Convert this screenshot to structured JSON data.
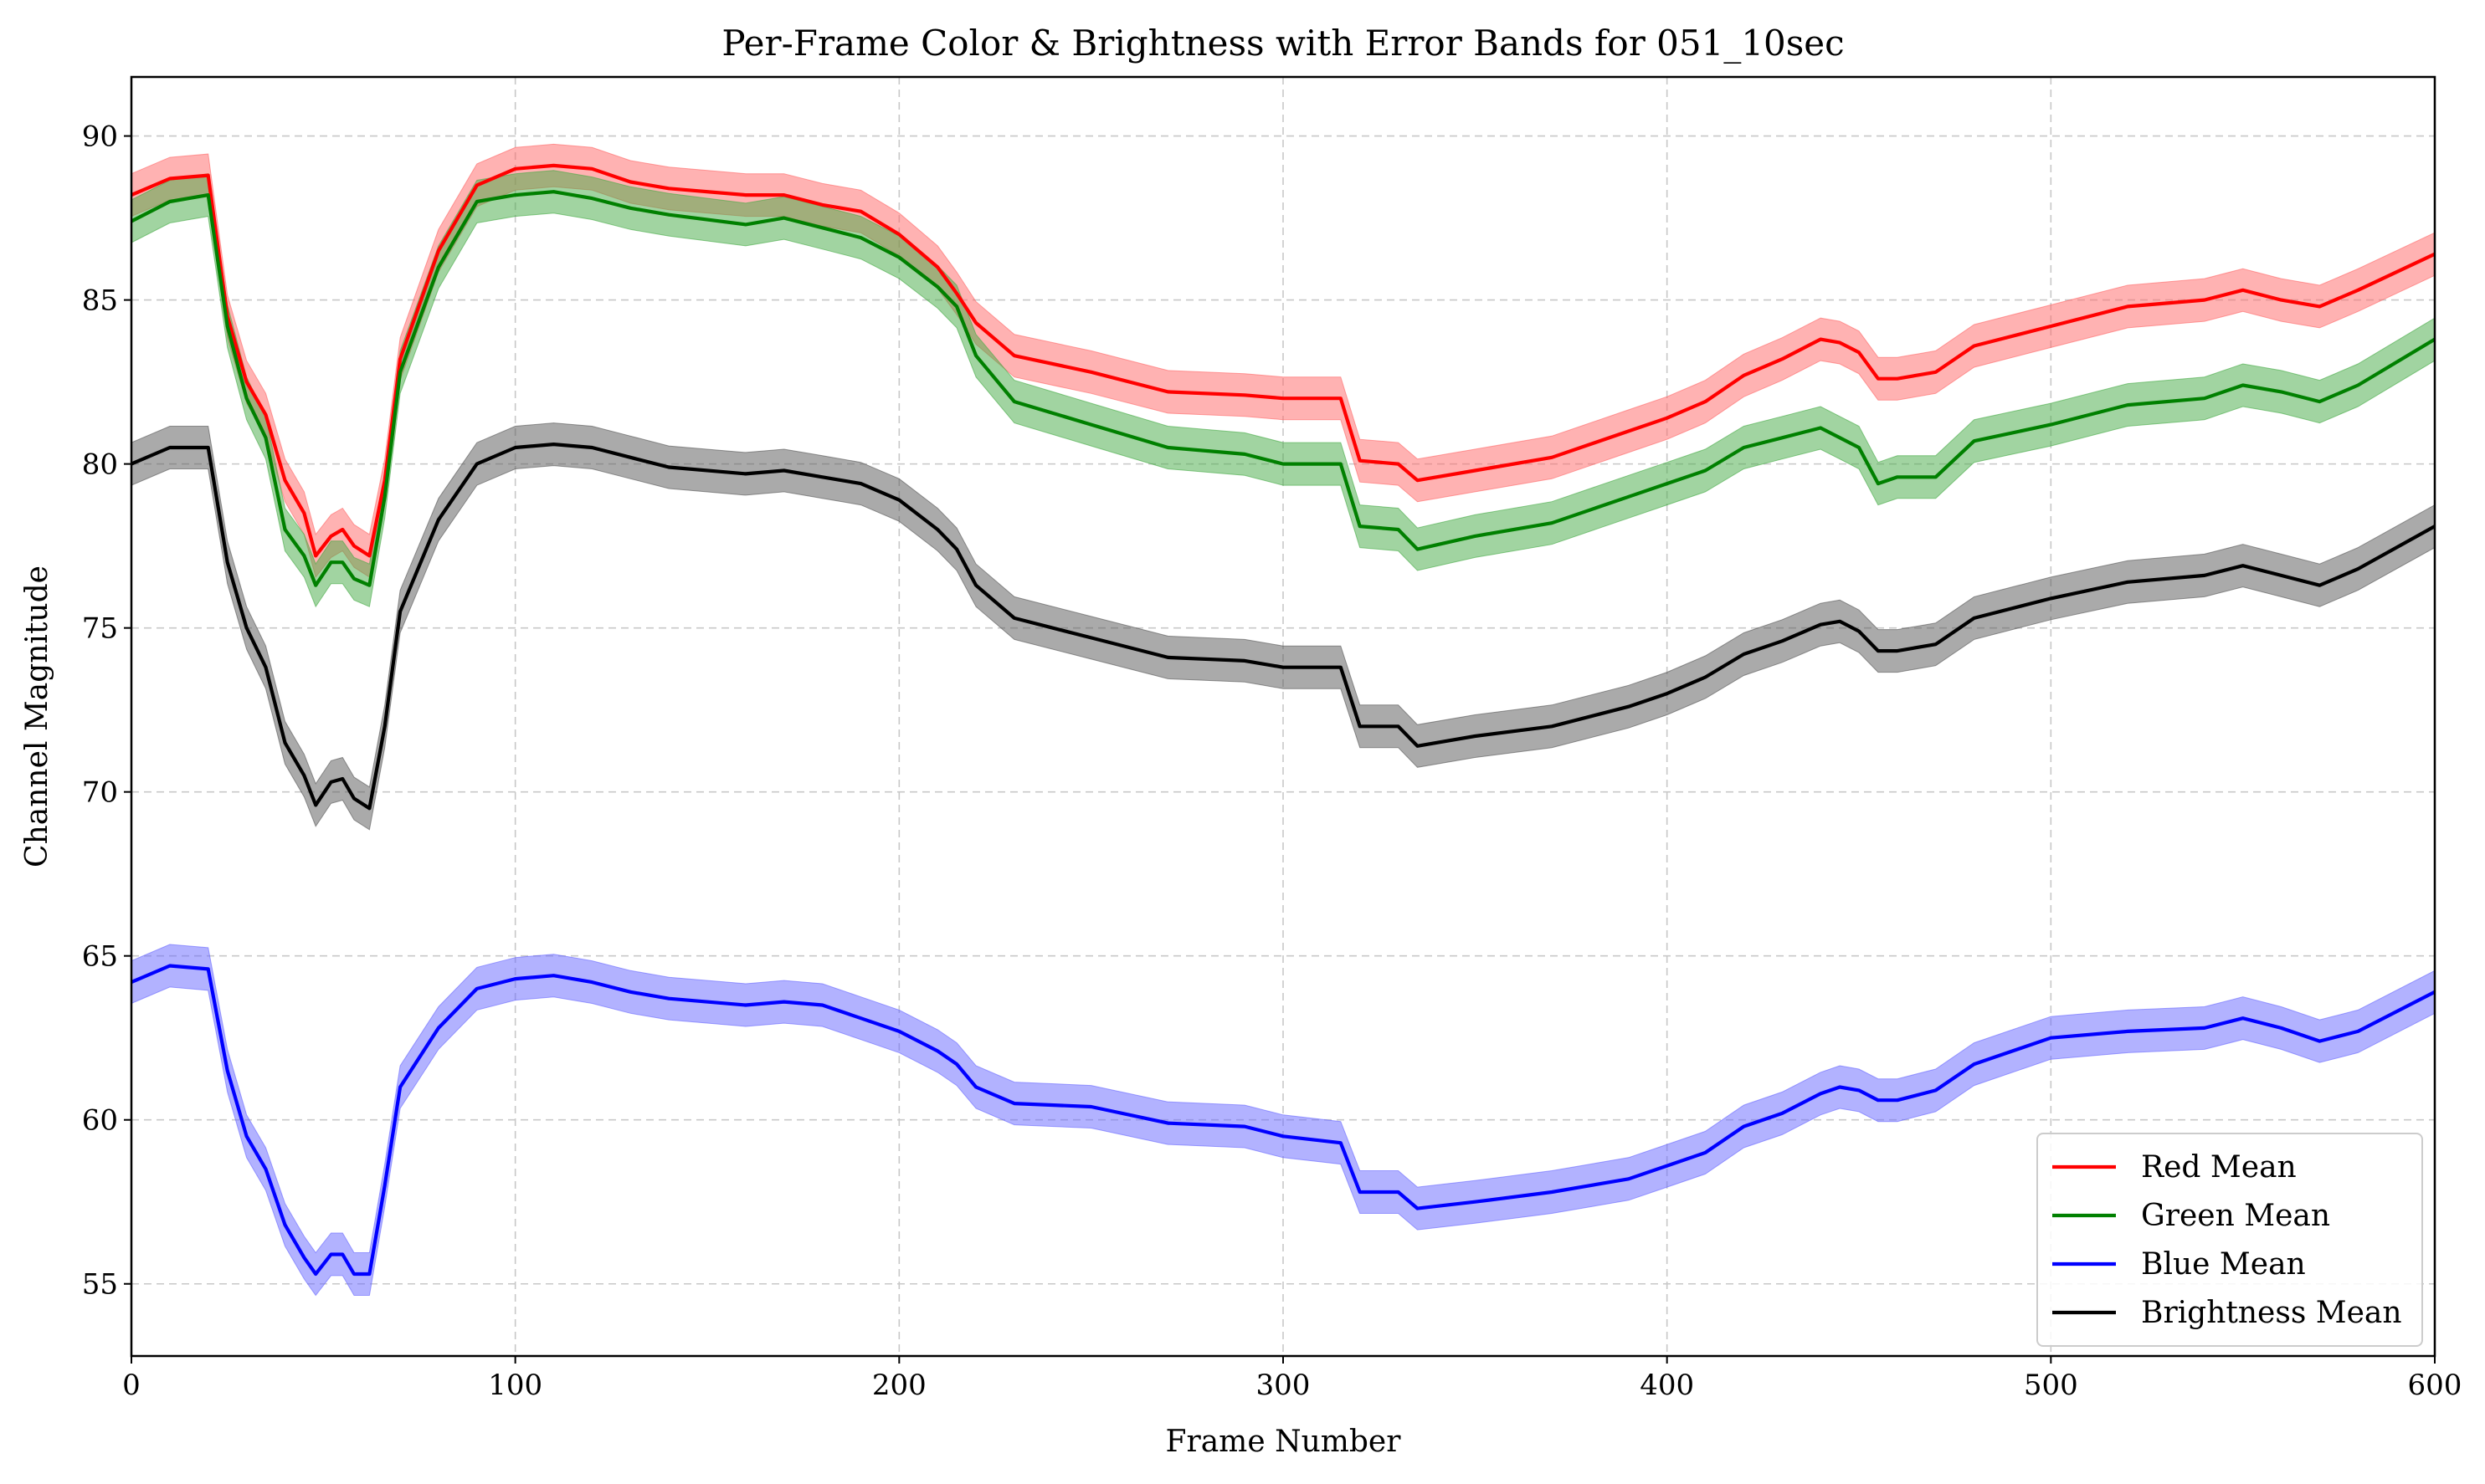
{
  "chart_data": {
    "type": "line",
    "title": "Per-Frame Color & Brightness with Error Bands for 051_10sec",
    "xlabel": "Frame Number",
    "ylabel": "Channel Magnitude",
    "xlim": [
      0,
      600
    ],
    "ylim": [
      52.8,
      91.8
    ],
    "xticks": [
      0,
      100,
      200,
      300,
      400,
      500,
      600
    ],
    "xtick_labels": [
      "0",
      "100",
      "200",
      "300",
      "400",
      "500",
      "600"
    ],
    "yticks": [
      55,
      60,
      65,
      70,
      75,
      80,
      85,
      90
    ],
    "ytick_labels": [
      "55",
      "60",
      "65",
      "70",
      "75",
      "80",
      "85",
      "90"
    ],
    "grid": true,
    "legend_position": "lower-right",
    "x": [
      0,
      10,
      20,
      25,
      30,
      35,
      40,
      45,
      48,
      52,
      55,
      58,
      62,
      66,
      70,
      80,
      90,
      100,
      110,
      120,
      130,
      140,
      160,
      170,
      180,
      190,
      200,
      210,
      215,
      220,
      230,
      250,
      270,
      290,
      300,
      315,
      320,
      330,
      335,
      350,
      370,
      390,
      400,
      410,
      420,
      430,
      440,
      445,
      450,
      455,
      460,
      470,
      480,
      500,
      520,
      540,
      550,
      560,
      570,
      580,
      600
    ],
    "series": [
      {
        "name": "Red Mean",
        "color": "#ff0000",
        "band_color": "#ff6666",
        "values": [
          88.2,
          88.7,
          88.8,
          84.5,
          82.5,
          81.5,
          79.5,
          78.5,
          77.2,
          77.8,
          78.0,
          77.5,
          77.2,
          79.5,
          83.2,
          86.5,
          88.5,
          89.0,
          89.1,
          89.0,
          88.6,
          88.4,
          88.2,
          88.2,
          87.9,
          87.7,
          87.0,
          86.0,
          85.2,
          84.3,
          83.3,
          82.8,
          82.2,
          82.1,
          82.0,
          82.0,
          80.1,
          80.0,
          79.5,
          79.8,
          80.2,
          81.0,
          81.4,
          81.9,
          82.7,
          83.2,
          83.8,
          83.7,
          83.4,
          82.6,
          82.6,
          82.8,
          83.6,
          84.2,
          84.8,
          85.0,
          85.3,
          85.0,
          84.8,
          85.3,
          86.4
        ],
        "error": [
          0.65,
          0.65,
          0.65,
          0.65,
          0.65,
          0.65,
          0.65,
          0.65,
          0.65,
          0.65,
          0.65,
          0.65,
          0.65,
          0.65,
          0.65,
          0.65,
          0.65,
          0.65,
          0.65,
          0.65,
          0.65,
          0.65,
          0.65,
          0.65,
          0.65,
          0.65,
          0.65,
          0.65,
          0.65,
          0.65,
          0.65,
          0.65,
          0.65,
          0.65,
          0.65,
          0.65,
          0.65,
          0.65,
          0.65,
          0.65,
          0.65,
          0.65,
          0.65,
          0.65,
          0.65,
          0.65,
          0.65,
          0.65,
          0.65,
          0.65,
          0.65,
          0.65,
          0.65,
          0.65,
          0.65,
          0.65,
          0.65,
          0.65,
          0.65,
          0.65,
          0.65
        ]
      },
      {
        "name": "Green Mean",
        "color": "#008000",
        "band_color": "#44aa44",
        "values": [
          87.4,
          88.0,
          88.2,
          84.2,
          82.0,
          80.8,
          78.0,
          77.2,
          76.3,
          77.0,
          77.0,
          76.5,
          76.3,
          79.0,
          82.8,
          86.0,
          88.0,
          88.2,
          88.3,
          88.1,
          87.8,
          87.6,
          87.3,
          87.5,
          87.2,
          86.9,
          86.3,
          85.4,
          84.8,
          83.3,
          81.9,
          81.2,
          80.5,
          80.3,
          80.0,
          80.0,
          78.1,
          78.0,
          77.4,
          77.8,
          78.2,
          79.0,
          79.4,
          79.8,
          80.5,
          80.8,
          81.1,
          80.8,
          80.5,
          79.4,
          79.6,
          79.6,
          80.7,
          81.2,
          81.8,
          82.0,
          82.4,
          82.2,
          81.9,
          82.4,
          83.8
        ],
        "error": [
          0.65,
          0.65,
          0.65,
          0.65,
          0.65,
          0.65,
          0.65,
          0.65,
          0.65,
          0.65,
          0.65,
          0.65,
          0.65,
          0.65,
          0.65,
          0.65,
          0.65,
          0.65,
          0.65,
          0.65,
          0.65,
          0.65,
          0.65,
          0.65,
          0.65,
          0.65,
          0.65,
          0.65,
          0.65,
          0.65,
          0.65,
          0.65,
          0.65,
          0.65,
          0.65,
          0.65,
          0.65,
          0.65,
          0.65,
          0.65,
          0.65,
          0.65,
          0.65,
          0.65,
          0.65,
          0.65,
          0.65,
          0.65,
          0.65,
          0.65,
          0.65,
          0.65,
          0.65,
          0.65,
          0.65,
          0.65,
          0.65,
          0.65,
          0.65,
          0.65,
          0.65
        ]
      },
      {
        "name": "Blue Mean",
        "color": "#0000ff",
        "band_color": "#6666ff",
        "values": [
          64.2,
          64.7,
          64.6,
          61.5,
          59.5,
          58.5,
          56.8,
          55.8,
          55.3,
          55.9,
          55.9,
          55.3,
          55.3,
          58.0,
          61.0,
          62.8,
          64.0,
          64.3,
          64.4,
          64.2,
          63.9,
          63.7,
          63.5,
          63.6,
          63.5,
          63.1,
          62.7,
          62.1,
          61.7,
          61.0,
          60.5,
          60.4,
          59.9,
          59.8,
          59.5,
          59.3,
          57.8,
          57.8,
          57.3,
          57.5,
          57.8,
          58.2,
          58.6,
          59.0,
          59.8,
          60.2,
          60.8,
          61.0,
          60.9,
          60.6,
          60.6,
          60.9,
          61.7,
          62.5,
          62.7,
          62.8,
          63.1,
          62.8,
          62.4,
          62.7,
          63.9
        ],
        "error": [
          0.65,
          0.65,
          0.65,
          0.65,
          0.65,
          0.65,
          0.65,
          0.65,
          0.65,
          0.65,
          0.65,
          0.65,
          0.65,
          0.65,
          0.65,
          0.65,
          0.65,
          0.65,
          0.65,
          0.65,
          0.65,
          0.65,
          0.65,
          0.65,
          0.65,
          0.65,
          0.65,
          0.65,
          0.65,
          0.65,
          0.65,
          0.65,
          0.65,
          0.65,
          0.65,
          0.65,
          0.65,
          0.65,
          0.65,
          0.65,
          0.65,
          0.65,
          0.65,
          0.65,
          0.65,
          0.65,
          0.65,
          0.65,
          0.65,
          0.65,
          0.65,
          0.65,
          0.65,
          0.65,
          0.65,
          0.65,
          0.65,
          0.65,
          0.65,
          0.65,
          0.65
        ]
      },
      {
        "name": "Brightness Mean",
        "color": "#000000",
        "band_color": "#555555",
        "values": [
          80.0,
          80.5,
          80.5,
          77.0,
          75.0,
          73.8,
          71.5,
          70.5,
          69.6,
          70.3,
          70.4,
          69.8,
          69.5,
          72.0,
          75.5,
          78.3,
          80.0,
          80.5,
          80.6,
          80.5,
          80.2,
          79.9,
          79.7,
          79.8,
          79.6,
          79.4,
          78.9,
          78.0,
          77.4,
          76.3,
          75.3,
          74.7,
          74.1,
          74.0,
          73.8,
          73.8,
          72.0,
          72.0,
          71.4,
          71.7,
          72.0,
          72.6,
          73.0,
          73.5,
          74.2,
          74.6,
          75.1,
          75.2,
          74.9,
          74.3,
          74.3,
          74.5,
          75.3,
          75.9,
          76.4,
          76.6,
          76.9,
          76.6,
          76.3,
          76.8,
          78.1
        ],
        "error": [
          0.65,
          0.65,
          0.65,
          0.65,
          0.65,
          0.65,
          0.65,
          0.65,
          0.65,
          0.65,
          0.65,
          0.65,
          0.65,
          0.65,
          0.65,
          0.65,
          0.65,
          0.65,
          0.65,
          0.65,
          0.65,
          0.65,
          0.65,
          0.65,
          0.65,
          0.65,
          0.65,
          0.65,
          0.65,
          0.65,
          0.65,
          0.65,
          0.65,
          0.65,
          0.65,
          0.65,
          0.65,
          0.65,
          0.65,
          0.65,
          0.65,
          0.65,
          0.65,
          0.65,
          0.65,
          0.65,
          0.65,
          0.65,
          0.65,
          0.65,
          0.65,
          0.65,
          0.65,
          0.65,
          0.65,
          0.65,
          0.65,
          0.65,
          0.65,
          0.65,
          0.65
        ]
      }
    ]
  }
}
